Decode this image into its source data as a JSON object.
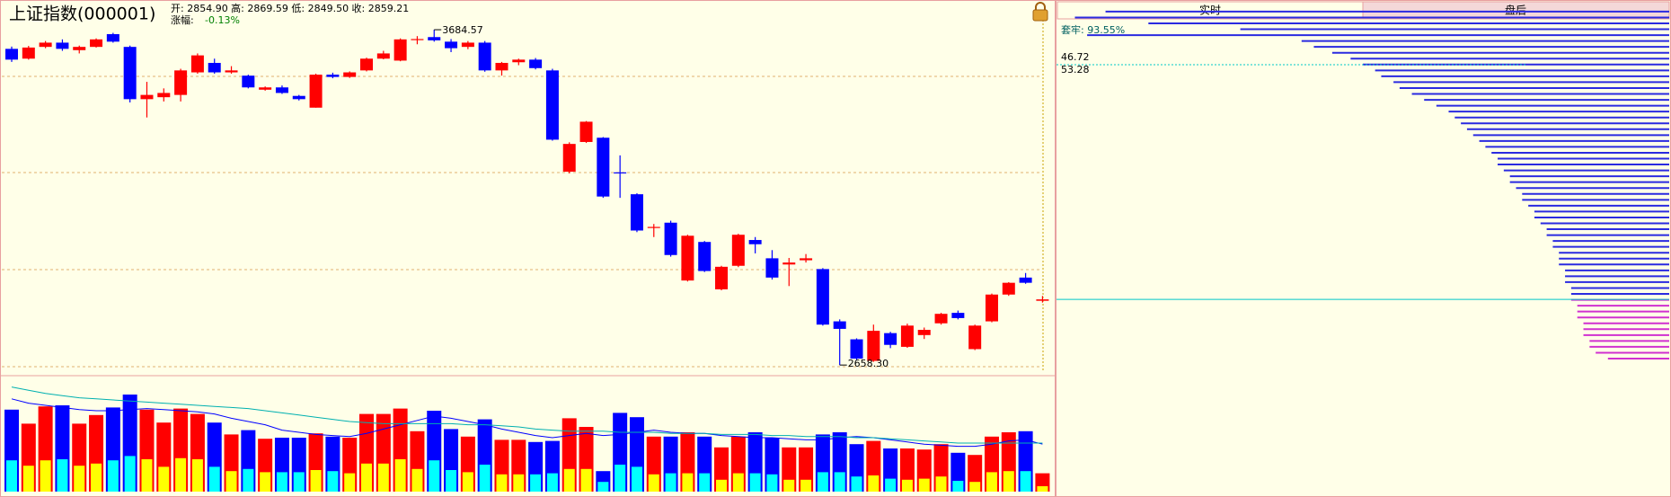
{
  "header": {
    "title": "上证指数(000001)",
    "info": "开: 2854.90 高: 2869.59 低: 2849.50 收: 2859.21",
    "change_label": "涨幅:",
    "change_value": "-0.13%",
    "high_label": "3684.57",
    "low_label": "2658.30"
  },
  "chart_data": [
    {
      "type": "candlestick",
      "ylim": [
        2645,
        3759
      ],
      "up_color": "#ff0000",
      "down_color": "#0000ff",
      "open": [
        3626,
        3596,
        3632,
        3645,
        3622,
        3632,
        3671,
        3632,
        3472,
        3478,
        3485,
        3554,
        3583,
        3554,
        3544,
        3501,
        3508,
        3482,
        3446,
        3547,
        3540,
        3560,
        3596,
        3590,
        3653,
        3662,
        3648,
        3632,
        3645,
        3560,
        3585,
        3593,
        3560,
        3250,
        3341,
        3354,
        3248,
        3181,
        3078,
        3094,
        2917,
        3035,
        2890,
        2962,
        3041,
        2985,
        2966,
        2979,
        2952,
        2792,
        2737,
        2671,
        2756,
        2714,
        2750,
        2786,
        2818,
        2707,
        2792,
        2874,
        2926,
        2854.9
      ],
      "high": [
        3633,
        3635,
        3650,
        3655,
        3636,
        3658,
        3675,
        3636,
        3525,
        3505,
        3565,
        3612,
        3596,
        3573,
        3547,
        3511,
        3514,
        3485,
        3550,
        3553,
        3557,
        3599,
        3620,
        3658,
        3665,
        3684.57,
        3656,
        3650,
        3650,
        3586,
        3596,
        3598,
        3565,
        3340,
        3405,
        3356,
        3300,
        3184,
        3090,
        3100,
        3057,
        3038,
        2962,
        3060,
        3050,
        3010,
        2986,
        2998,
        2955,
        2798,
        2740,
        2782,
        2760,
        2785,
        2773,
        2818,
        2825,
        2782,
        2877,
        2912,
        2940,
        2869.59
      ],
      "low": [
        3586,
        3593,
        3628,
        3620,
        3612,
        3630,
        3645,
        3462,
        3416,
        3465,
        3465,
        3550,
        3550,
        3550,
        3505,
        3498,
        3488,
        3468,
        3446,
        3536,
        3537,
        3557,
        3594,
        3588,
        3640,
        3648,
        3616,
        3625,
        3556,
        3544,
        3576,
        3563,
        3345,
        3245,
        3338,
        3170,
        3170,
        3065,
        3050,
        2990,
        2914,
        2943,
        2887,
        2958,
        3000,
        2920,
        2900,
        2972,
        2779,
        2658.3,
        2674,
        2668,
        2710,
        2711,
        2738,
        2782,
        2798,
        2704,
        2789,
        2870,
        2907,
        2849.5
      ],
      "close": [
        3593,
        3630,
        3645,
        3626,
        3632,
        3655,
        3648,
        3472,
        3485,
        3491,
        3560,
        3606,
        3554,
        3560,
        3508,
        3508,
        3491,
        3472,
        3547,
        3540,
        3554,
        3596,
        3612,
        3655,
        3656,
        3652,
        3628,
        3645,
        3560,
        3583,
        3593,
        3567,
        3348,
        3335,
        3403,
        3174,
        3245,
        3070,
        3081,
        2995,
        3054,
        2946,
        2959,
        3057,
        3028,
        2926,
        2972,
        2985,
        2782,
        2769,
        2678,
        2763,
        2720,
        2779,
        2766,
        2815,
        2802,
        2779,
        2874,
        2910,
        2910,
        2859.21
      ]
    },
    {
      "type": "volume",
      "ylim": [
        0,
        100
      ],
      "up_color": "#ff0000",
      "down_color": "#0000ff",
      "inner_up_color": "#ffff00",
      "inner_down_color": "#00ffff",
      "values": [
        76,
        63,
        79,
        80,
        63,
        71,
        78,
        90,
        76,
        64,
        77,
        72,
        64,
        53,
        57,
        49,
        50,
        50,
        54,
        51,
        50,
        72,
        72,
        77,
        56,
        75,
        58,
        51,
        67,
        48,
        48,
        46,
        47,
        68,
        60,
        19,
        73,
        69,
        51,
        51,
        55,
        51,
        41,
        51,
        55,
        50,
        41,
        41,
        53,
        55,
        44,
        47,
        40,
        40,
        39,
        44,
        36,
        34,
        51,
        55,
        56,
        17
      ],
      "inner_values": [
        29,
        24,
        29,
        30,
        24,
        26,
        29,
        33,
        30,
        23,
        31,
        30,
        23,
        19,
        21,
        18,
        18,
        18,
        20,
        19,
        17,
        26,
        26,
        30,
        21,
        29,
        20,
        18,
        25,
        16,
        16,
        16,
        17,
        21,
        21,
        9,
        25,
        23,
        16,
        17,
        17,
        17,
        11,
        17,
        17,
        16,
        11,
        11,
        18,
        18,
        14,
        15,
        12,
        11,
        12,
        14,
        10,
        9,
        18,
        19,
        19,
        5
      ],
      "ma": [
        {
          "color": "#0000ff",
          "values": [
            86,
            82,
            80,
            78,
            76,
            75,
            75,
            76,
            77,
            76,
            75,
            74,
            72,
            68,
            65,
            62,
            57,
            55,
            53,
            52,
            51,
            54,
            58,
            62,
            66,
            70,
            68,
            65,
            62,
            58,
            55,
            52,
            50,
            52,
            54,
            52,
            53,
            55,
            57,
            55,
            54,
            54,
            52,
            51,
            50,
            50,
            49,
            48,
            48,
            50,
            51,
            50,
            48,
            46,
            44,
            43,
            42,
            42,
            44,
            47,
            48,
            44
          ]
        },
        {
          "color": "#00b0b0",
          "values": [
            97,
            94,
            91,
            89,
            87,
            86,
            85,
            84,
            83,
            82,
            81,
            80,
            79,
            78,
            77,
            75,
            73,
            71,
            69,
            67,
            65,
            64,
            63,
            63,
            63,
            63,
            63,
            62,
            62,
            61,
            60,
            58,
            57,
            56,
            56,
            56,
            55,
            55,
            55,
            54,
            54,
            54,
            53,
            53,
            53,
            52,
            52,
            51,
            51,
            51,
            50,
            50,
            49,
            48,
            47,
            46,
            45,
            45,
            45,
            45,
            45,
            45
          ]
        }
      ]
    },
    {
      "type": "chips",
      "ylim": [
        2645,
        3759
      ],
      "above_color": "#2a2ae0",
      "below_color": "#d030d0",
      "current_color": "#00c8c8",
      "tabs": [
        "实时",
        "盘后"
      ],
      "trapped_label": "套牢: 93.55%",
      "label_a": "46.72",
      "label_b": "53.28",
      "prices": [
        3740,
        3722,
        3704,
        3686,
        3668,
        3650,
        3632,
        3614,
        3596,
        3578,
        3560,
        3542,
        3524,
        3506,
        3488,
        3470,
        3452,
        3434,
        3416,
        3398,
        3380,
        3362,
        3344,
        3326,
        3308,
        3290,
        3272,
        3254,
        3236,
        3218,
        3200,
        3182,
        3164,
        3146,
        3128,
        3110,
        3092,
        3074,
        3056,
        3038,
        3020,
        3002,
        2984,
        2966,
        2948,
        2930,
        2912,
        2894,
        2876,
        2858,
        2840,
        2822,
        2804,
        2786,
        2768,
        2750,
        2732,
        2714,
        2696,
        2678
      ],
      "values": [
        92,
        97,
        85,
        70,
        95,
        60,
        58,
        55,
        52,
        50,
        48,
        47,
        45,
        44,
        42,
        40,
        38,
        36,
        35,
        34,
        33,
        32,
        31,
        30,
        29,
        28,
        28,
        27,
        26,
        26,
        25,
        24,
        24,
        23,
        22,
        22,
        21,
        20,
        20,
        19,
        19,
        18,
        18,
        18,
        17,
        17,
        17,
        16,
        16,
        16,
        15,
        15,
        15,
        14,
        14,
        14,
        13,
        13,
        12,
        10
      ]
    }
  ]
}
